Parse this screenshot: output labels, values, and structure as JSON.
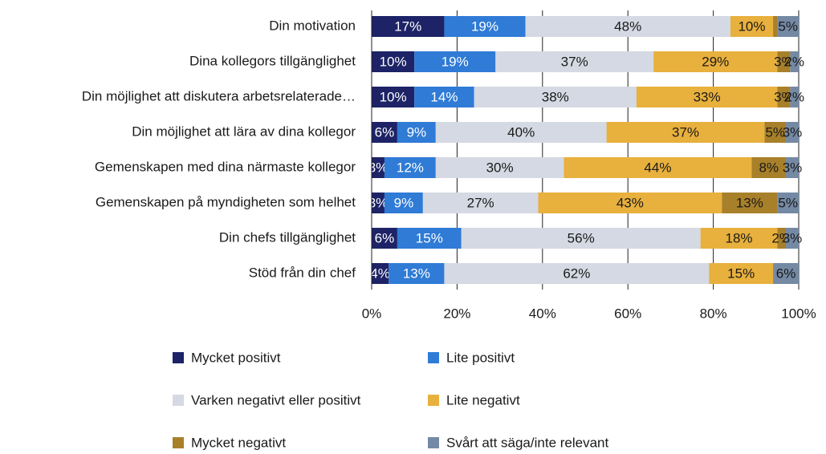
{
  "chart_data": {
    "type": "stacked_barh",
    "categories": [
      "Din motivation",
      "Dina kollegors tillgänglighet",
      "Din möjlighet att diskutera arbetsrelaterade…",
      "Din möjlighet att lära av dina kollegor",
      "Gemenskapen med dina närmaste kollegor",
      "Gemenskapen på myndigheten som helhet",
      "Din chefs tillgänglighet",
      "Stöd från din chef"
    ],
    "series": [
      {
        "name": "Mycket positivt",
        "color": "#1d2366",
        "values": [
          17,
          10,
          10,
          6,
          3,
          3,
          6,
          4
        ],
        "value_labels": [
          "17%",
          "10%",
          "10%",
          "6%",
          "3%",
          "3%",
          "6%",
          "4%"
        ]
      },
      {
        "name": "Lite positivt",
        "color": "#2f7bd6",
        "values": [
          19,
          19,
          14,
          9,
          12,
          9,
          15,
          13
        ],
        "value_labels": [
          "19%",
          "19%",
          "14%",
          "9%",
          "12%",
          "9%",
          "15%",
          "13%"
        ]
      },
      {
        "name": "Varken negativt eller positivt",
        "color": "#d5d9e3",
        "values": [
          48,
          37,
          38,
          40,
          30,
          27,
          56,
          62
        ],
        "value_labels": [
          "48%",
          "37%",
          "38%",
          "40%",
          "30%",
          "27%",
          "56%",
          "62%"
        ]
      },
      {
        "name": "Lite negativt",
        "color": "#e8b03d",
        "values": [
          10,
          29,
          33,
          37,
          44,
          43,
          18,
          15
        ],
        "value_labels": [
          "10%",
          "29%",
          "33%",
          "37%",
          "44%",
          "43%",
          "18%",
          "15%"
        ]
      },
      {
        "name": "Mycket negativt",
        "color": "#a88029",
        "values": [
          1,
          3,
          3,
          5,
          8,
          13,
          2,
          0
        ],
        "value_labels": [
          null,
          "3%",
          "3%",
          "5%",
          "8%",
          "13%",
          "2%",
          null
        ]
      },
      {
        "name": "Svårt att säga/inte relevant",
        "color": "#7489a4",
        "values": [
          5,
          2,
          2,
          3,
          3,
          5,
          3,
          6
        ],
        "value_labels": [
          "5%",
          "2%",
          "2%",
          "3%",
          "3%",
          "5%",
          "3%",
          "6%"
        ]
      }
    ],
    "xlim": [
      0,
      100
    ],
    "xticks": [
      {
        "value": 0,
        "label": "0%"
      },
      {
        "value": 20,
        "label": "20%"
      },
      {
        "value": 40,
        "label": "40%"
      },
      {
        "value": 60,
        "label": "60%"
      },
      {
        "value": 80,
        "label": "80%"
      },
      {
        "value": 100,
        "label": "100%"
      }
    ],
    "grid": true,
    "legend": "bottom"
  }
}
